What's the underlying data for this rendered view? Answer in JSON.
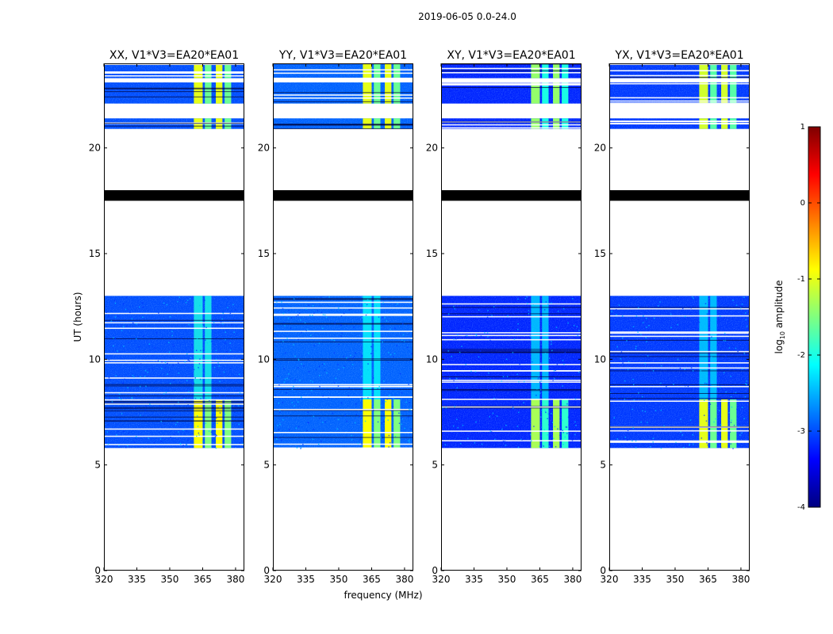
{
  "chart_data": {
    "type": "heatmap",
    "title": "2019-06-05 0.0-24.0",
    "xlabel": "frequency (MHz)",
    "ylabel": "UT (hours)",
    "xlim": [
      320,
      384
    ],
    "ylim": [
      0,
      24
    ],
    "x_ticks": [
      320,
      335,
      350,
      365,
      380
    ],
    "y_ticks": [
      0,
      5,
      10,
      15,
      20
    ],
    "colorbar": {
      "label_text": "log",
      "label_sub": "10",
      "label_rest": " amplitude",
      "range": [
        -4,
        1
      ],
      "ticks": [
        -4,
        -3,
        -2,
        -1,
        0,
        1
      ],
      "colormap": "jet"
    },
    "panels": [
      {
        "title": "XX, V1*V3=EA20*EA01"
      },
      {
        "title": "YY, V1*V3=EA20*EA01"
      },
      {
        "title": "XY, V1*V3=EA20*EA01"
      },
      {
        "title": "YX, V1*V3=EA20*EA01"
      }
    ],
    "data_blocks_ut": [
      [
        5.8,
        13.0
      ],
      [
        20.9,
        21.4
      ],
      [
        22.1,
        23.1
      ],
      [
        23.3,
        24.0
      ]
    ],
    "flagged_black_ut": [
      [
        17.5,
        18.0
      ]
    ],
    "rfi_freq_ranges_mhz": [
      [
        361,
        365
      ],
      [
        366,
        369
      ],
      [
        371,
        374
      ],
      [
        375,
        378
      ]
    ],
    "panel_levels": [
      {
        "background": -3.0,
        "bright_block": -1.0,
        "mid_band": -2.0
      },
      {
        "background": -2.9,
        "bright_block": -1.0,
        "mid_band": -2.1
      },
      {
        "background": -3.2,
        "bright_block": -1.4,
        "mid_band": -2.3
      },
      {
        "background": -3.1,
        "bright_block": -1.1,
        "mid_band": -2.3
      }
    ]
  }
}
